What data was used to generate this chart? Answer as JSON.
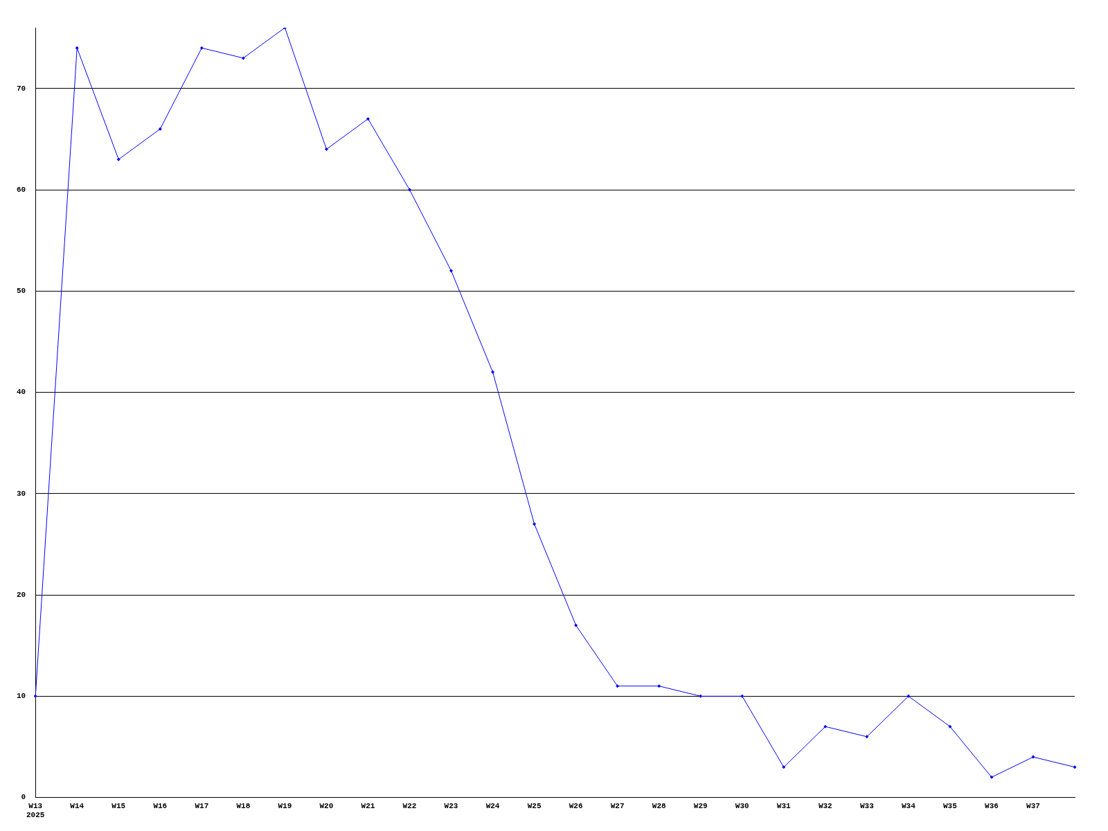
{
  "chart_data": {
    "type": "line",
    "categories": [
      "W13\n2025",
      "W14",
      "W15",
      "W16",
      "W17",
      "W18",
      "W19",
      "W20",
      "W21",
      "W22",
      "W23",
      "W24",
      "W25",
      "W26",
      "W27",
      "W28",
      "W29",
      "W30",
      "W31",
      "W32",
      "W33",
      "W34",
      "W35",
      "W36",
      "W37",
      null
    ],
    "series": [
      {
        "color": "#0000ff",
        "values": [
          10,
          74,
          63,
          66,
          74,
          73,
          76,
          64,
          67,
          60,
          52,
          42,
          27,
          17,
          11,
          11,
          10,
          10,
          3,
          7,
          6,
          10,
          7,
          2,
          4,
          3
        ]
      }
    ],
    "ylim": [
      0,
      76
    ],
    "yticks": [
      0,
      10,
      20,
      30,
      40,
      50,
      60,
      70
    ],
    "grid": "y",
    "legend": false,
    "marker": "diamond",
    "line_style": "solid"
  }
}
